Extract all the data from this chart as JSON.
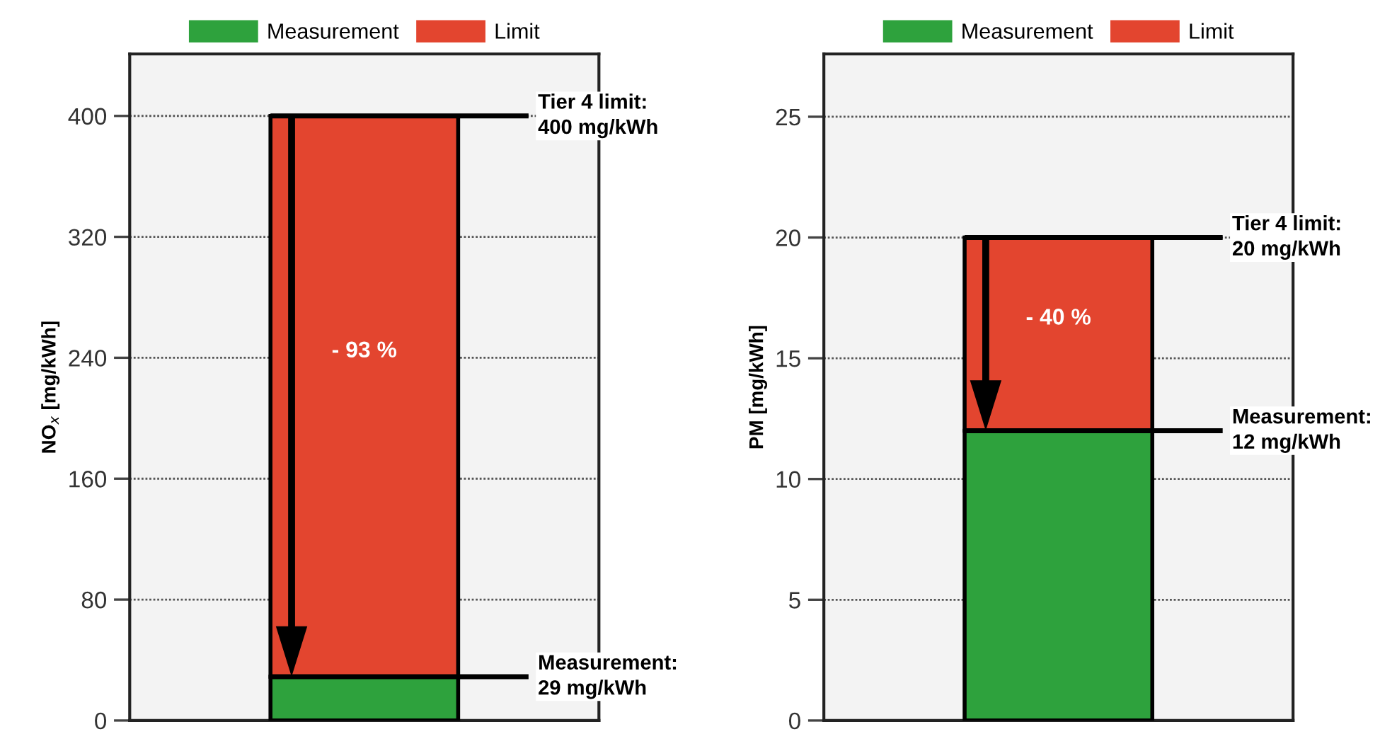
{
  "chart_data": [
    {
      "type": "bar",
      "stacked": true,
      "categories": [
        null
      ],
      "ylabel": "NO$_{x}$ [mg/kWh]",
      "series": [
        {
          "name": "Measurement",
          "color": "#2ea23d",
          "values": [
            29
          ]
        },
        {
          "name": "Limit",
          "color": "#e3452f",
          "values": [
            371
          ]
        }
      ],
      "ylim": [
        0,
        441
      ],
      "yticks": [
        0,
        80,
        160,
        240,
        320,
        400
      ],
      "grid": "y",
      "legend": "top",
      "ref_lines": [
        {
          "axis": "y",
          "value": 400,
          "label": "Tier 4 limit:\n400 mg/kWh",
          "color": "#000000"
        },
        {
          "axis": "y",
          "value": 29,
          "label": "Measurement:\n29 mg/kWh",
          "color": "#000000"
        }
      ],
      "annotations": [
        "- 93 %"
      ]
    },
    {
      "type": "bar",
      "stacked": true,
      "categories": [
        null
      ],
      "ylabel": "PM [mg/kWh]",
      "series": [
        {
          "name": "Measurement",
          "color": "#2ea23d",
          "values": [
            12
          ]
        },
        {
          "name": "Limit",
          "color": "#e3452f",
          "values": [
            8
          ]
        }
      ],
      "ylim": [
        0,
        27.6
      ],
      "yticks": [
        0,
        5,
        10,
        15,
        20,
        25
      ],
      "grid": "y",
      "legend": "top",
      "ref_lines": [
        {
          "axis": "y",
          "value": 20,
          "label": "Tier 4 limit:\n20 mg/kWh",
          "color": "#000000"
        },
        {
          "axis": "y",
          "value": 12,
          "label": "Measurement:\n12 mg/kWh",
          "color": "#000000"
        }
      ],
      "annotations": [
        "- 40 %"
      ]
    }
  ]
}
